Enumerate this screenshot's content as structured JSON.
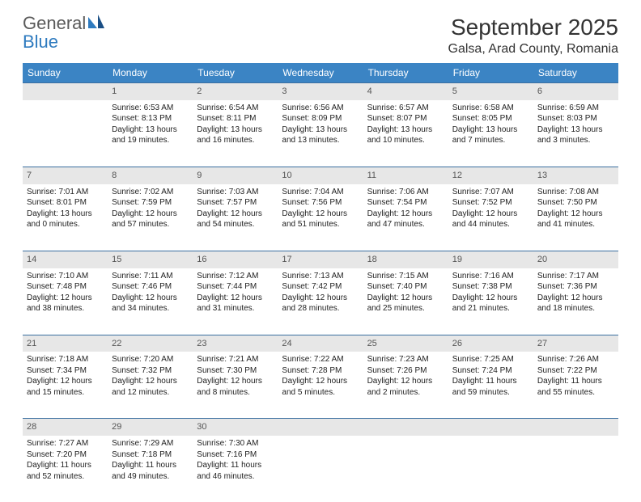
{
  "logo": {
    "word1": "General",
    "word2": "Blue"
  },
  "title": "September 2025",
  "location": "Galsa, Arad County, Romania",
  "colors": {
    "headerbar": "#3b84c4",
    "weekline": "#3b6fa0",
    "daynum_bg": "#e7e7e7",
    "logo_gray": "#5a5a5a",
    "logo_blue": "#2f7bbf"
  },
  "dow": [
    "Sunday",
    "Monday",
    "Tuesday",
    "Wednesday",
    "Thursday",
    "Friday",
    "Saturday"
  ],
  "weeks": [
    [
      null,
      {
        "n": "1",
        "sr": "Sunrise: 6:53 AM",
        "ss": "Sunset: 8:13 PM",
        "d1": "Daylight: 13 hours",
        "d2": "and 19 minutes."
      },
      {
        "n": "2",
        "sr": "Sunrise: 6:54 AM",
        "ss": "Sunset: 8:11 PM",
        "d1": "Daylight: 13 hours",
        "d2": "and 16 minutes."
      },
      {
        "n": "3",
        "sr": "Sunrise: 6:56 AM",
        "ss": "Sunset: 8:09 PM",
        "d1": "Daylight: 13 hours",
        "d2": "and 13 minutes."
      },
      {
        "n": "4",
        "sr": "Sunrise: 6:57 AM",
        "ss": "Sunset: 8:07 PM",
        "d1": "Daylight: 13 hours",
        "d2": "and 10 minutes."
      },
      {
        "n": "5",
        "sr": "Sunrise: 6:58 AM",
        "ss": "Sunset: 8:05 PM",
        "d1": "Daylight: 13 hours",
        "d2": "and 7 minutes."
      },
      {
        "n": "6",
        "sr": "Sunrise: 6:59 AM",
        "ss": "Sunset: 8:03 PM",
        "d1": "Daylight: 13 hours",
        "d2": "and 3 minutes."
      }
    ],
    [
      {
        "n": "7",
        "sr": "Sunrise: 7:01 AM",
        "ss": "Sunset: 8:01 PM",
        "d1": "Daylight: 13 hours",
        "d2": "and 0 minutes."
      },
      {
        "n": "8",
        "sr": "Sunrise: 7:02 AM",
        "ss": "Sunset: 7:59 PM",
        "d1": "Daylight: 12 hours",
        "d2": "and 57 minutes."
      },
      {
        "n": "9",
        "sr": "Sunrise: 7:03 AM",
        "ss": "Sunset: 7:57 PM",
        "d1": "Daylight: 12 hours",
        "d2": "and 54 minutes."
      },
      {
        "n": "10",
        "sr": "Sunrise: 7:04 AM",
        "ss": "Sunset: 7:56 PM",
        "d1": "Daylight: 12 hours",
        "d2": "and 51 minutes."
      },
      {
        "n": "11",
        "sr": "Sunrise: 7:06 AM",
        "ss": "Sunset: 7:54 PM",
        "d1": "Daylight: 12 hours",
        "d2": "and 47 minutes."
      },
      {
        "n": "12",
        "sr": "Sunrise: 7:07 AM",
        "ss": "Sunset: 7:52 PM",
        "d1": "Daylight: 12 hours",
        "d2": "and 44 minutes."
      },
      {
        "n": "13",
        "sr": "Sunrise: 7:08 AM",
        "ss": "Sunset: 7:50 PM",
        "d1": "Daylight: 12 hours",
        "d2": "and 41 minutes."
      }
    ],
    [
      {
        "n": "14",
        "sr": "Sunrise: 7:10 AM",
        "ss": "Sunset: 7:48 PM",
        "d1": "Daylight: 12 hours",
        "d2": "and 38 minutes."
      },
      {
        "n": "15",
        "sr": "Sunrise: 7:11 AM",
        "ss": "Sunset: 7:46 PM",
        "d1": "Daylight: 12 hours",
        "d2": "and 34 minutes."
      },
      {
        "n": "16",
        "sr": "Sunrise: 7:12 AM",
        "ss": "Sunset: 7:44 PM",
        "d1": "Daylight: 12 hours",
        "d2": "and 31 minutes."
      },
      {
        "n": "17",
        "sr": "Sunrise: 7:13 AM",
        "ss": "Sunset: 7:42 PM",
        "d1": "Daylight: 12 hours",
        "d2": "and 28 minutes."
      },
      {
        "n": "18",
        "sr": "Sunrise: 7:15 AM",
        "ss": "Sunset: 7:40 PM",
        "d1": "Daylight: 12 hours",
        "d2": "and 25 minutes."
      },
      {
        "n": "19",
        "sr": "Sunrise: 7:16 AM",
        "ss": "Sunset: 7:38 PM",
        "d1": "Daylight: 12 hours",
        "d2": "and 21 minutes."
      },
      {
        "n": "20",
        "sr": "Sunrise: 7:17 AM",
        "ss": "Sunset: 7:36 PM",
        "d1": "Daylight: 12 hours",
        "d2": "and 18 minutes."
      }
    ],
    [
      {
        "n": "21",
        "sr": "Sunrise: 7:18 AM",
        "ss": "Sunset: 7:34 PM",
        "d1": "Daylight: 12 hours",
        "d2": "and 15 minutes."
      },
      {
        "n": "22",
        "sr": "Sunrise: 7:20 AM",
        "ss": "Sunset: 7:32 PM",
        "d1": "Daylight: 12 hours",
        "d2": "and 12 minutes."
      },
      {
        "n": "23",
        "sr": "Sunrise: 7:21 AM",
        "ss": "Sunset: 7:30 PM",
        "d1": "Daylight: 12 hours",
        "d2": "and 8 minutes."
      },
      {
        "n": "24",
        "sr": "Sunrise: 7:22 AM",
        "ss": "Sunset: 7:28 PM",
        "d1": "Daylight: 12 hours",
        "d2": "and 5 minutes."
      },
      {
        "n": "25",
        "sr": "Sunrise: 7:23 AM",
        "ss": "Sunset: 7:26 PM",
        "d1": "Daylight: 12 hours",
        "d2": "and 2 minutes."
      },
      {
        "n": "26",
        "sr": "Sunrise: 7:25 AM",
        "ss": "Sunset: 7:24 PM",
        "d1": "Daylight: 11 hours",
        "d2": "and 59 minutes."
      },
      {
        "n": "27",
        "sr": "Sunrise: 7:26 AM",
        "ss": "Sunset: 7:22 PM",
        "d1": "Daylight: 11 hours",
        "d2": "and 55 minutes."
      }
    ],
    [
      {
        "n": "28",
        "sr": "Sunrise: 7:27 AM",
        "ss": "Sunset: 7:20 PM",
        "d1": "Daylight: 11 hours",
        "d2": "and 52 minutes."
      },
      {
        "n": "29",
        "sr": "Sunrise: 7:29 AM",
        "ss": "Sunset: 7:18 PM",
        "d1": "Daylight: 11 hours",
        "d2": "and 49 minutes."
      },
      {
        "n": "30",
        "sr": "Sunrise: 7:30 AM",
        "ss": "Sunset: 7:16 PM",
        "d1": "Daylight: 11 hours",
        "d2": "and 46 minutes."
      },
      null,
      null,
      null,
      null
    ]
  ]
}
